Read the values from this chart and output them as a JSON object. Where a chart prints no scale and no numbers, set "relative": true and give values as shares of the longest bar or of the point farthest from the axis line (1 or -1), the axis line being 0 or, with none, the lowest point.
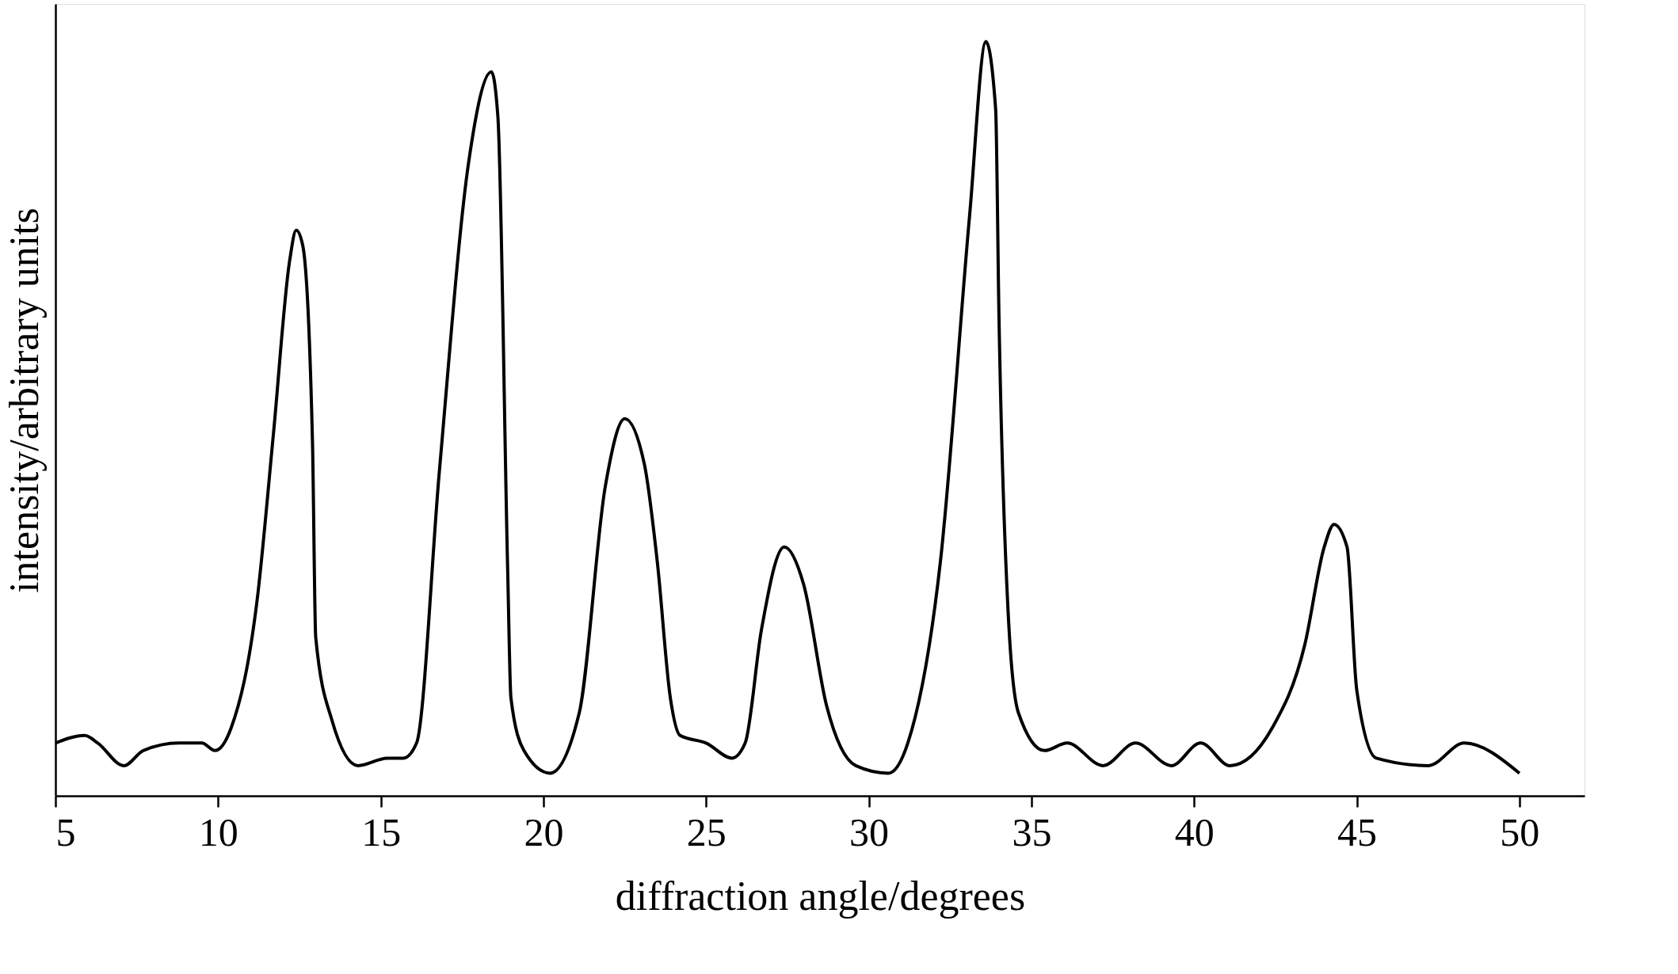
{
  "chart_data": {
    "type": "line",
    "relative": true,
    "xlabel": "diffraction angle/degrees",
    "ylabel": "intensity/arbitrary units",
    "xlim": [
      5,
      52
    ],
    "xticks": [
      5,
      10,
      15,
      20,
      25,
      30,
      35,
      40,
      45,
      50
    ],
    "grid": false,
    "marker": "none",
    "line_style": "solid",
    "series": [
      {
        "color": "#000000",
        "x": [
          5.0,
          5.9,
          6.3,
          7.1,
          7.7,
          8.8,
          9.5,
          9.9,
          10.4,
          11.2,
          11.7,
          12.2,
          12.4,
          12.6,
          12.9,
          13.0,
          13.5,
          14.3,
          15.2,
          15.7,
          16.1,
          16.8,
          17.7,
          18.4,
          18.6,
          18.9,
          19.0,
          19.4,
          20.2,
          21.1,
          21.9,
          22.5,
          23.1,
          23.5,
          23.9,
          24.2,
          25.0,
          25.8,
          26.2,
          26.7,
          27.4,
          28.0,
          28.7,
          29.6,
          30.6,
          31.2,
          32.2,
          33.1,
          33.6,
          33.9,
          34.0,
          34.3,
          34.6,
          35.4,
          36.1,
          37.2,
          38.2,
          39.3,
          40.2,
          41.1,
          42.4,
          43.4,
          44.0,
          44.3,
          44.7,
          45.0,
          45.6,
          47.2,
          48.3,
          50.0
        ],
        "values": [
          0.07,
          0.08,
          0.07,
          0.04,
          0.06,
          0.07,
          0.07,
          0.06,
          0.09,
          0.26,
          0.48,
          0.71,
          0.75,
          0.73,
          0.47,
          0.21,
          0.1,
          0.04,
          0.05,
          0.05,
          0.07,
          0.43,
          0.84,
          0.96,
          0.9,
          0.3,
          0.13,
          0.06,
          0.03,
          0.11,
          0.41,
          0.5,
          0.44,
          0.31,
          0.13,
          0.08,
          0.07,
          0.05,
          0.07,
          0.22,
          0.33,
          0.28,
          0.12,
          0.04,
          0.03,
          0.07,
          0.31,
          0.77,
          1.0,
          0.91,
          0.64,
          0.23,
          0.11,
          0.06,
          0.07,
          0.04,
          0.07,
          0.04,
          0.07,
          0.04,
          0.09,
          0.2,
          0.33,
          0.36,
          0.33,
          0.14,
          0.05,
          0.04,
          0.07,
          0.03
        ]
      }
    ]
  }
}
